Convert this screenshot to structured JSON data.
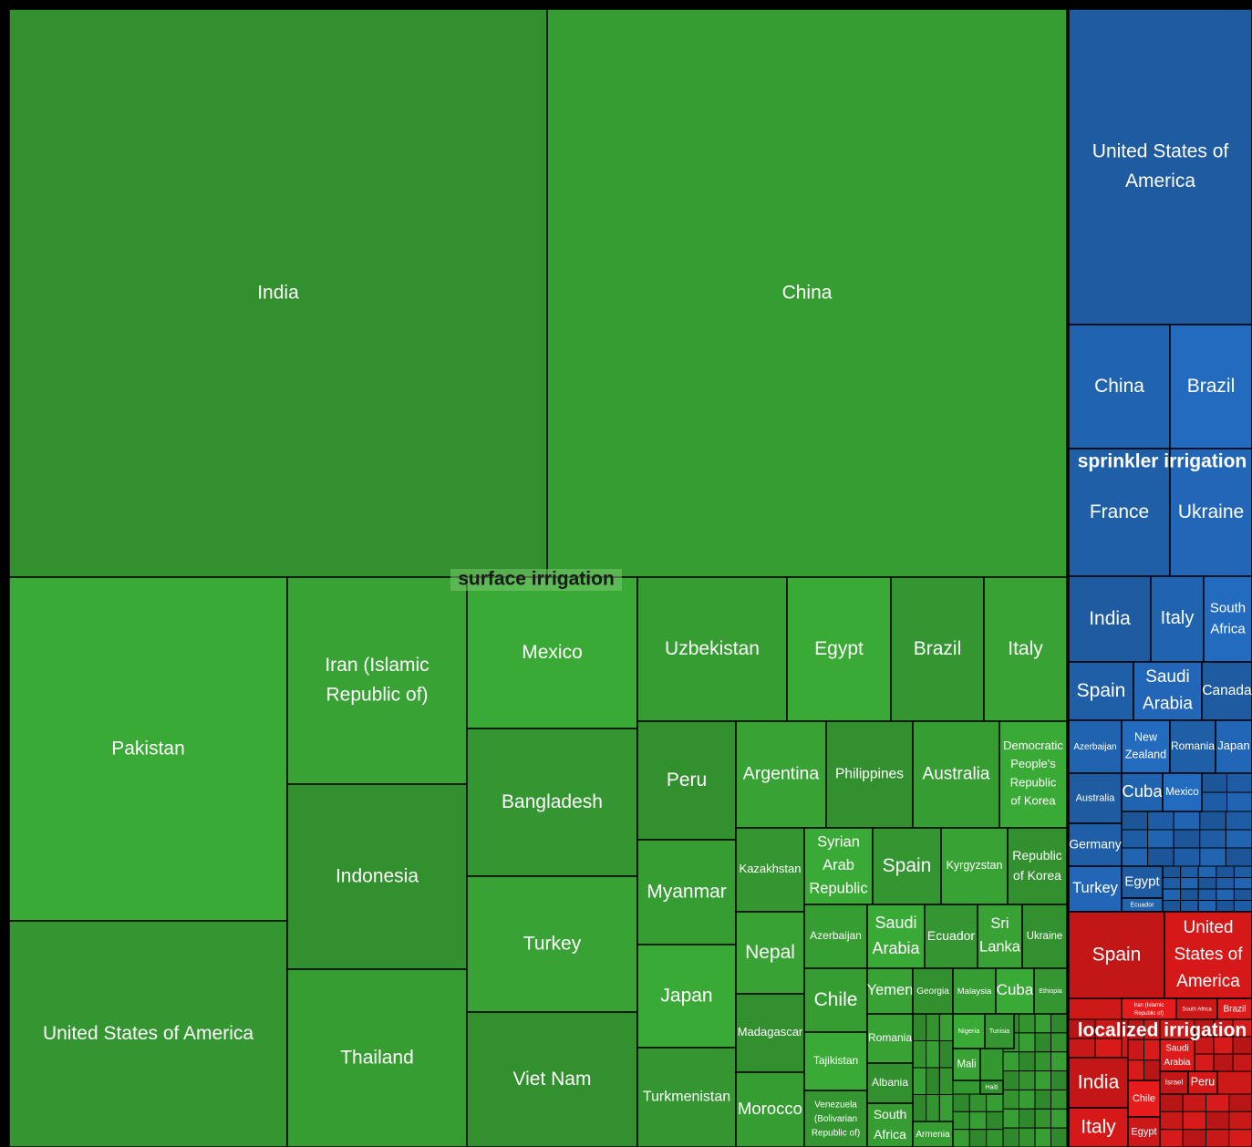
{
  "chart_data": {
    "type": "treemap",
    "groups": [
      {
        "name": "surface irrigation",
        "color": "#37a033",
        "items": [
          {
            "name": "India",
            "value": 368
          },
          {
            "name": "China",
            "value": 355
          },
          {
            "name": "Pakistan",
            "value": 115
          },
          {
            "name": "United States of America",
            "value": 75
          },
          {
            "name": "Iran (Islamic Republic of)",
            "value": 45
          },
          {
            "name": "Indonesia",
            "value": 40
          },
          {
            "name": "Thailand",
            "value": 38
          },
          {
            "name": "Mexico",
            "value": 31
          },
          {
            "name": "Bangladesh",
            "value": 30
          },
          {
            "name": "Turkey",
            "value": 28
          },
          {
            "name": "Viet Nam",
            "value": 27
          },
          {
            "name": "Uzbekistan",
            "value": 26
          },
          {
            "name": "Egypt",
            "value": 18
          },
          {
            "name": "Brazil",
            "value": 16
          },
          {
            "name": "Italy",
            "value": 14
          },
          {
            "name": "Peru",
            "value": 14
          },
          {
            "name": "Myanmar",
            "value": 12
          },
          {
            "name": "Japan",
            "value": 12
          },
          {
            "name": "Turkmenistan",
            "value": 12
          },
          {
            "name": "Argentina",
            "value": 12
          },
          {
            "name": "Philippines",
            "value": 11
          },
          {
            "name": "Australia",
            "value": 11
          },
          {
            "name": "Democratic People's Republic of Korea",
            "value": 9
          },
          {
            "name": "Kazakhstan",
            "value": 7
          },
          {
            "name": "Nepal",
            "value": 7
          },
          {
            "name": "Madagascar",
            "value": 6.5
          },
          {
            "name": "Morocco",
            "value": 6
          },
          {
            "name": "Syrian Arab Republic",
            "value": 6.3
          },
          {
            "name": "Spain",
            "value": 6.3
          },
          {
            "name": "Kyrgyzstan",
            "value": 6.1
          },
          {
            "name": "Republic of Korea",
            "value": 5.5
          },
          {
            "name": "Azerbaijan",
            "value": 4.8
          },
          {
            "name": "Saudi Arabia",
            "value": 4.4
          },
          {
            "name": "Ecuador",
            "value": 4.1
          },
          {
            "name": "Sri Lanka",
            "value": 3.4
          },
          {
            "name": "Ukraine",
            "value": 3.4
          },
          {
            "name": "Chile",
            "value": 4.8
          },
          {
            "name": "Tajikistan",
            "value": 4.4
          },
          {
            "name": "Venezuela (Bolivarian Republic of)",
            "value": 4.1
          },
          {
            "name": "Yemen",
            "value": 2.5
          },
          {
            "name": "Georgia",
            "value": 2.2
          },
          {
            "name": "Malaysia",
            "value": 2.4
          },
          {
            "name": "Cuba",
            "value": 2.1
          },
          {
            "name": "Ethiopia",
            "value": 1.8
          },
          {
            "name": "Romania",
            "value": 2.7
          },
          {
            "name": "Albania",
            "value": 2.2
          },
          {
            "name": "South Africa",
            "value": 2.3
          },
          {
            "name": "Nigeria",
            "value": 1.3
          },
          {
            "name": "Tunisia",
            "value": 1.2
          },
          {
            "name": "Mali",
            "value": 1.1
          },
          {
            "name": "Haiti",
            "value": 0.4
          },
          {
            "name": "Armenia",
            "value": 1.1
          }
        ]
      },
      {
        "name": "sprinkler irrigation",
        "color": "#2165b3",
        "items": [
          {
            "name": "United States of America",
            "value": 70
          },
          {
            "name": "China",
            "value": 15.4
          },
          {
            "name": "Brazil",
            "value": 12.2
          },
          {
            "name": "France",
            "value": 15.8
          },
          {
            "name": "Ukraine",
            "value": 12.6
          },
          {
            "name": "India",
            "value": 8.6
          },
          {
            "name": "Italy",
            "value": 5.5
          },
          {
            "name": "South Africa",
            "value": 5
          },
          {
            "name": "Spain",
            "value": 4.7
          },
          {
            "name": "Saudi Arabia",
            "value": 4.8
          },
          {
            "name": "Canada",
            "value": 3.5
          },
          {
            "name": "Azerbaijan",
            "value": 3.5
          },
          {
            "name": "New Zealand",
            "value": 3.1
          },
          {
            "name": "Romania",
            "value": 2.9
          },
          {
            "name": "Japan",
            "value": 2.3
          },
          {
            "name": "Australia",
            "value": 3.3
          },
          {
            "name": "Cuba",
            "value": 1.9
          },
          {
            "name": "Mexico",
            "value": 1.8
          },
          {
            "name": "Germany",
            "value": 2.8
          },
          {
            "name": "Turkey",
            "value": 3
          },
          {
            "name": "Egypt",
            "value": 1.6
          },
          {
            "name": "Ecuador",
            "value": 0.7
          }
        ]
      },
      {
        "name": "localized irrigation",
        "color": "#d91a1a",
        "items": [
          {
            "name": "Spain",
            "value": 10.2
          },
          {
            "name": "United States of America",
            "value": 9.1
          },
          {
            "name": "Iran (Islamic Republic of)",
            "value": 1.4
          },
          {
            "name": "South Africa",
            "value": 1
          },
          {
            "name": "Brazil",
            "value": 0.9
          },
          {
            "name": "India",
            "value": 3.7
          },
          {
            "name": "Italy",
            "value": 2.7
          },
          {
            "name": "Chile",
            "value": 1.4
          },
          {
            "name": "Egypt",
            "value": 1.1
          },
          {
            "name": "Saudi Arabia",
            "value": 1.3
          },
          {
            "name": "Israel",
            "value": 0.8
          },
          {
            "name": "Peru",
            "value": 0.8
          }
        ]
      }
    ]
  }
}
